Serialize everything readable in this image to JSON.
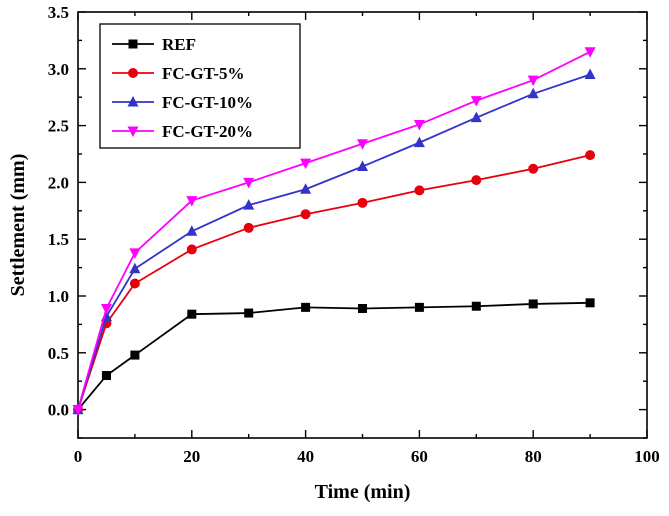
{
  "chart_data": {
    "type": "line",
    "title": "",
    "xlabel": "Time (min)",
    "ylabel": "Settlement (mm)",
    "xlim": [
      0,
      100
    ],
    "ylim": [
      -0.25,
      3.5
    ],
    "xticks": [
      0,
      20,
      40,
      60,
      80,
      100
    ],
    "yticks": [
      0.0,
      0.5,
      1.0,
      1.5,
      2.0,
      2.5,
      3.0,
      3.5
    ],
    "ytick_labels": [
      "0.0",
      "0.5",
      "1.0",
      "1.5",
      "2.0",
      "2.5",
      "3.0",
      "3.5"
    ],
    "x_minor_step": 10,
    "y_minor_step": 0.25,
    "grid": false,
    "legend_position": "upper-left",
    "x": [
      0,
      5,
      10,
      20,
      30,
      40,
      50,
      60,
      70,
      80,
      90
    ],
    "series": [
      {
        "name": "REF",
        "color": "#000000",
        "marker": "square",
        "values": [
          0.0,
          0.3,
          0.48,
          0.84,
          0.85,
          0.9,
          0.89,
          0.9,
          0.91,
          0.93,
          0.94
        ]
      },
      {
        "name": "FC-GT-5%",
        "color": "#e8000d",
        "marker": "circle",
        "values": [
          0.0,
          0.76,
          1.11,
          1.41,
          1.6,
          1.72,
          1.82,
          1.93,
          2.02,
          2.12,
          2.24
        ]
      },
      {
        "name": "FC-GT-10%",
        "color": "#3333cc",
        "marker": "triangle-up",
        "values": [
          0.0,
          0.82,
          1.24,
          1.57,
          1.8,
          1.94,
          2.14,
          2.35,
          2.57,
          2.78,
          2.95
        ]
      },
      {
        "name": "FC-GT-20%",
        "color": "#ff00ff",
        "marker": "triangle-down",
        "values": [
          0.0,
          0.89,
          1.38,
          1.84,
          2.0,
          2.17,
          2.34,
          2.51,
          2.72,
          2.9,
          3.15
        ]
      }
    ]
  }
}
